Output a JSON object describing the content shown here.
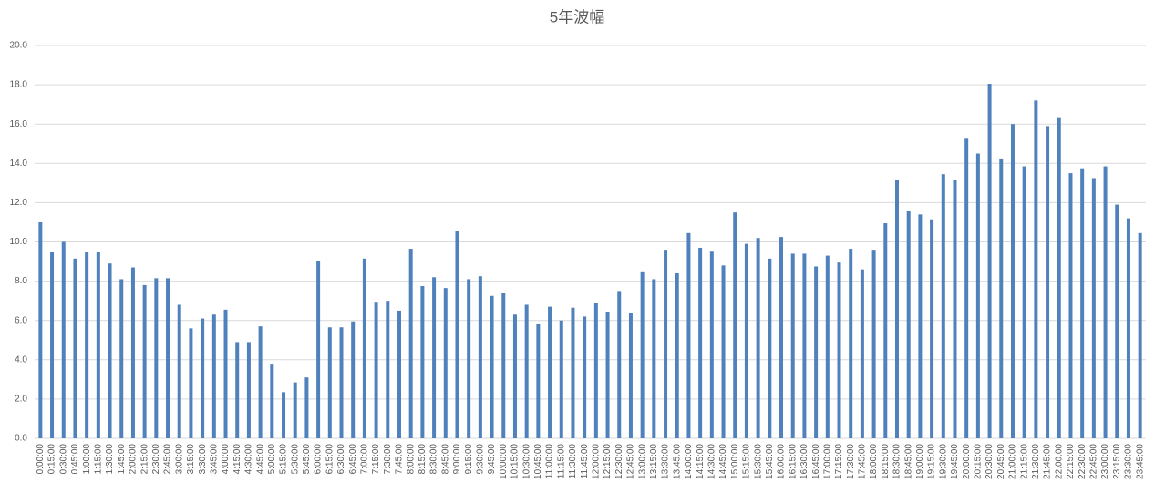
{
  "chart_data": {
    "type": "bar",
    "title": "5年波幅",
    "categories": [
      "0:00:00",
      "0:15:00",
      "0:30:00",
      "0:45:00",
      "1:00:00",
      "1:15:00",
      "1:30:00",
      "1:45:00",
      "2:00:00",
      "2:15:00",
      "2:30:00",
      "2:45:00",
      "3:00:00",
      "3:15:00",
      "3:30:00",
      "3:45:00",
      "4:00:00",
      "4:15:00",
      "4:30:00",
      "4:45:00",
      "5:00:00",
      "5:15:00",
      "5:30:00",
      "5:45:00",
      "6:00:00",
      "6:15:00",
      "6:30:00",
      "6:45:00",
      "7:00:00",
      "7:15:00",
      "7:30:00",
      "7:45:00",
      "8:00:00",
      "8:15:00",
      "8:30:00",
      "8:45:00",
      "9:00:00",
      "9:15:00",
      "9:30:00",
      "9:45:00",
      "10:00:00",
      "10:15:00",
      "10:30:00",
      "10:45:00",
      "11:00:00",
      "11:15:00",
      "11:30:00",
      "11:45:00",
      "12:00:00",
      "12:15:00",
      "12:30:00",
      "12:45:00",
      "13:00:00",
      "13:15:00",
      "13:30:00",
      "13:45:00",
      "14:00:00",
      "14:15:00",
      "14:30:00",
      "14:45:00",
      "15:00:00",
      "15:15:00",
      "15:30:00",
      "15:45:00",
      "16:00:00",
      "16:15:00",
      "16:30:00",
      "16:45:00",
      "17:00:00",
      "17:15:00",
      "17:30:00",
      "17:45:00",
      "18:00:00",
      "18:15:00",
      "18:30:00",
      "18:45:00",
      "19:00:00",
      "19:15:00",
      "19:30:00",
      "19:45:00",
      "20:00:00",
      "20:15:00",
      "20:30:00",
      "20:45:00",
      "21:00:00",
      "21:15:00",
      "21:30:00",
      "21:45:00",
      "22:00:00",
      "22:15:00",
      "22:30:00",
      "22:45:00",
      "23:00:00",
      "23:15:00",
      "23:30:00",
      "23:45:00"
    ],
    "values": [
      11.0,
      9.5,
      10.0,
      9.15,
      9.5,
      9.5,
      8.9,
      8.1,
      8.7,
      7.8,
      8.15,
      8.15,
      6.8,
      5.6,
      6.1,
      6.3,
      6.55,
      4.9,
      4.9,
      5.7,
      3.8,
      2.35,
      2.85,
      3.1,
      9.05,
      5.65,
      5.65,
      5.95,
      9.15,
      6.95,
      7.0,
      6.5,
      9.65,
      7.75,
      8.2,
      7.65,
      10.55,
      8.1,
      8.25,
      7.25,
      7.4,
      6.3,
      6.8,
      5.85,
      6.7,
      6.0,
      6.65,
      6.2,
      6.9,
      6.45,
      7.5,
      6.4,
      8.5,
      8.1,
      9.6,
      8.4,
      10.45,
      9.7,
      9.55,
      8.8,
      11.5,
      9.9,
      10.2,
      9.15,
      10.25,
      9.4,
      9.4,
      8.75,
      9.3,
      8.95,
      9.65,
      8.6,
      9.6,
      10.95,
      13.15,
      11.6,
      11.4,
      11.15,
      13.45,
      13.15,
      15.3,
      14.5,
      18.05,
      14.25,
      16.0,
      13.85,
      17.2,
      15.9,
      16.35,
      13.5,
      13.75,
      13.25,
      13.85,
      11.9,
      11.2,
      10.45
    ],
    "color": "#4f81bd",
    "ylim": [
      0,
      20
    ],
    "yticks": [
      {
        "value": 0,
        "label": "0.0"
      },
      {
        "value": 2,
        "label": "2.0"
      },
      {
        "value": 4,
        "label": "4.0"
      },
      {
        "value": 6,
        "label": "6.0"
      },
      {
        "value": 8,
        "label": "8.0"
      },
      {
        "value": 10,
        "label": "10.0"
      },
      {
        "value": 12,
        "label": "12.0"
      },
      {
        "value": 14,
        "label": "14.0"
      },
      {
        "value": 16,
        "label": "16.0"
      },
      {
        "value": 18,
        "label": "18.0"
      },
      {
        "value": 20,
        "label": "20.0"
      }
    ],
    "grid": true
  }
}
